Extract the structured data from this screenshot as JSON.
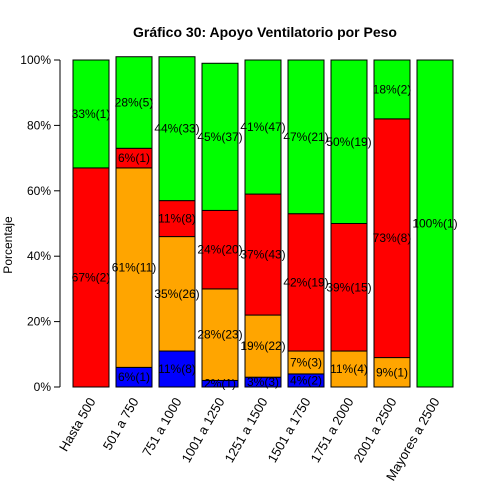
{
  "chart_data": {
    "type": "bar",
    "stacked": true,
    "title": "Gráfico 30: Apoyo Ventilatorio por Peso",
    "xlabel": "",
    "ylabel": "Porcentaje",
    "ylim": [
      0,
      100
    ],
    "yticks": [
      "0%",
      "20%",
      "40%",
      "60%",
      "80%",
      "100%"
    ],
    "categories": [
      "Hasta 500",
      "501 a 750",
      "751 a 1000",
      "1001 a 1250",
      "1251 a 1500",
      "1501 a 1750",
      "1751 a 2000",
      "2001 a 2500",
      "Mayores a 2500"
    ],
    "colors": {
      "blue": "#0000ff",
      "orange": "#ffa500",
      "red": "#ff0000",
      "green": "#00ff00"
    },
    "series": [
      {
        "color": "#0000ff",
        "values": [
          0,
          6,
          11,
          2,
          3,
          4,
          0,
          0,
          0
        ],
        "labels": [
          "",
          "6%(1)",
          "11%(8)",
          "2%(1)",
          "3%(3)",
          "4%(2)",
          "",
          "",
          ""
        ]
      },
      {
        "color": "#ffa500",
        "values": [
          0,
          61,
          35,
          28,
          19,
          7,
          11,
          9,
          0
        ],
        "labels": [
          "",
          "61%(11)",
          "35%(26)",
          "28%(23)",
          "19%(22)",
          "7%(3)",
          "11%(4)",
          "9%(1)",
          ""
        ]
      },
      {
        "color": "#ff0000",
        "values": [
          67,
          6,
          11,
          24,
          37,
          42,
          39,
          73,
          0
        ],
        "labels": [
          "67%(2)",
          "6%(1)",
          "11%(8)",
          "24%(20)",
          "37%(43)",
          "42%(19)",
          "39%(15)",
          "73%(8)",
          ""
        ]
      },
      {
        "color": "#00ff00",
        "values": [
          33,
          28,
          44,
          45,
          41,
          47,
          50,
          18,
          100
        ],
        "labels": [
          "33%(1)",
          "28%(5)",
          "44%(33)",
          "45%(37)",
          "41%(47)",
          "47%(21)",
          "50%(19)",
          "18%(2)",
          "100%(1)"
        ]
      }
    ]
  }
}
